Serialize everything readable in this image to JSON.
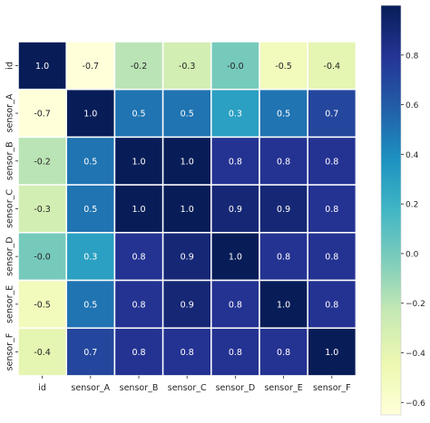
{
  "chart_data": {
    "type": "heatmap",
    "title": "",
    "rows": [
      "id",
      "sensor_A",
      "sensor_B",
      "sensor_C",
      "sensor_D",
      "sensor_E",
      "sensor_F"
    ],
    "columns": [
      "id",
      "sensor_A",
      "sensor_B",
      "sensor_C",
      "sensor_D",
      "sensor_E",
      "sensor_F"
    ],
    "values": [
      [
        1.0,
        -0.7,
        -0.2,
        -0.3,
        -0.0,
        -0.5,
        -0.4
      ],
      [
        -0.7,
        1.0,
        0.5,
        0.5,
        0.3,
        0.5,
        0.7
      ],
      [
        -0.2,
        0.5,
        1.0,
        1.0,
        0.8,
        0.8,
        0.8
      ],
      [
        -0.3,
        0.5,
        1.0,
        1.0,
        0.9,
        0.9,
        0.8
      ],
      [
        -0.0,
        0.3,
        0.8,
        0.9,
        1.0,
        0.8,
        0.8
      ],
      [
        -0.5,
        0.5,
        0.8,
        0.9,
        0.8,
        1.0,
        0.8
      ],
      [
        -0.4,
        0.7,
        0.8,
        0.8,
        0.8,
        0.8,
        1.0
      ]
    ],
    "value_labels": [
      [
        "1.0",
        "-0.7",
        "-0.2",
        "-0.3",
        "-0.0",
        "-0.5",
        "-0.4"
      ],
      [
        "-0.7",
        "1.0",
        "0.5",
        "0.5",
        "0.3",
        "0.5",
        "0.7"
      ],
      [
        "-0.2",
        "0.5",
        "1.0",
        "1.0",
        "0.8",
        "0.8",
        "0.8"
      ],
      [
        "-0.3",
        "0.5",
        "1.0",
        "1.0",
        "0.9",
        "0.9",
        "0.8"
      ],
      [
        "-0.0",
        "0.3",
        "0.8",
        "0.9",
        "1.0",
        "0.8",
        "0.8"
      ],
      [
        "-0.5",
        "0.5",
        "0.8",
        "0.9",
        "0.8",
        "1.0",
        "0.8"
      ],
      [
        "-0.4",
        "0.7",
        "0.8",
        "0.8",
        "0.8",
        "0.8",
        "1.0"
      ]
    ],
    "colormap": "YlGnBu",
    "colormap_stops": [
      "#ffffd9",
      "#edf8b1",
      "#c7e9b4",
      "#7fcdbb",
      "#41b6c4",
      "#1d91c0",
      "#225ea8",
      "#253494",
      "#081d58"
    ],
    "vmin": -0.65,
    "vmax": 1.0,
    "colorbar": {
      "ticks": [
        -0.6,
        -0.4,
        -0.2,
        0.0,
        0.2,
        0.4,
        0.6,
        0.8
      ],
      "tick_labels": [
        "−0.6",
        "−0.4",
        "−0.2",
        "0.0",
        "0.2",
        "0.4",
        "0.6",
        "0.8"
      ],
      "position": "right"
    },
    "grid_lines": true,
    "grid_color": "#ffffff",
    "label_color_light": "#ffffff",
    "label_color_dark": "#262626"
  }
}
